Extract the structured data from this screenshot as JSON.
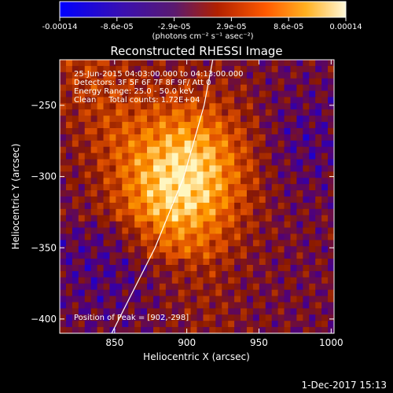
{
  "chart_data": {
    "type": "heatmap",
    "title": "Reconstructed RHESSI Image",
    "xlabel": "Heliocentric X (arcsec)",
    "ylabel": "Heliocentric Y (arcsec)",
    "xlim": [
      812,
      1002
    ],
    "ylim": [
      -410,
      -218
    ],
    "xticks": [
      850,
      900,
      950,
      1000
    ],
    "yticks": [
      -250,
      -300,
      -350,
      -400
    ],
    "colorbar": {
      "min": -0.00014,
      "max": 0.00014,
      "ticks": [
        "-0.00014",
        "-8.6e-05",
        "-2.9e-05",
        "2.9e-05",
        "8.6e-05",
        "0.00014"
      ],
      "unit_label": "(photons cm⁻² s⁻¹ asec⁻²)",
      "colors": [
        "#0000ff",
        "#4b0082",
        "#8b1a00",
        "#e05000",
        "#ff9a00",
        "#fff6c0"
      ]
    },
    "annotations": [
      "25-Jun-2015 04:03:00.000 to 04:13:00.000",
      "Detectors: 3F 5F 6F 7F 8F 9F/ Att 0",
      "Energy Range: 25.0 - 50.0 keV",
      "Clean     Total counts: 1.72E+04",
      "Position of Peak = [902,-298]"
    ],
    "peak": {
      "x": 902,
      "y": -298
    },
    "limb_curve": [
      [
        848,
        -410
      ],
      [
        878,
        -350
      ],
      [
        898,
        -300
      ],
      [
        912,
        -250
      ],
      [
        918,
        -218
      ]
    ]
  },
  "footer": {
    "date": "1-Dec-2017 15:13"
  }
}
